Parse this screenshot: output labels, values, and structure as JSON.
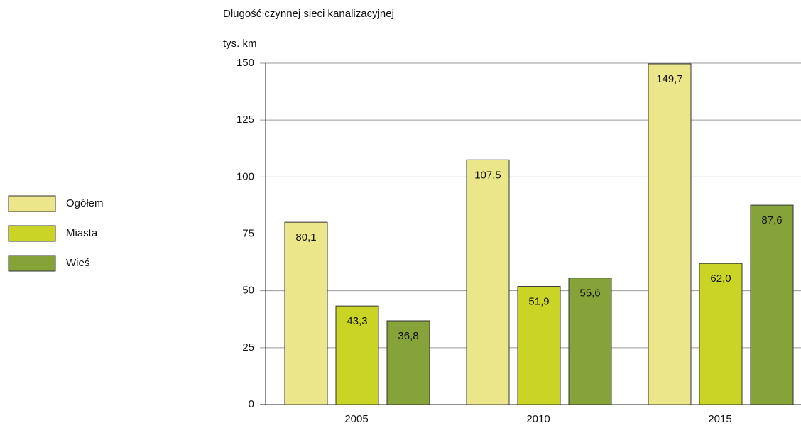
{
  "chart_data": {
    "type": "bar",
    "title": "Długość czynnej sieci kanalizacyjnej",
    "ylabel": "tys. km",
    "categories": [
      "2005",
      "2010",
      "2015"
    ],
    "series": [
      {
        "name": "Ogółem",
        "color": "#ebe68a",
        "values": [
          80.1,
          107.5,
          149.7
        ],
        "value_labels": [
          "80,1",
          "107,5",
          "149,7"
        ]
      },
      {
        "name": "Miasta",
        "color": "#cad424",
        "values": [
          43.3,
          51.9,
          62.0
        ],
        "value_labels": [
          "43,3",
          "51,9",
          "62,0"
        ]
      },
      {
        "name": "Wieś",
        "color": "#86a33a",
        "values": [
          36.8,
          55.6,
          87.6
        ],
        "value_labels": [
          "36,8",
          "55,6",
          "87,6"
        ]
      }
    ],
    "ylim": [
      0,
      150
    ],
    "yticks": [
      0,
      25,
      50,
      75,
      100,
      125,
      150
    ],
    "grid": true,
    "legend": "left"
  }
}
